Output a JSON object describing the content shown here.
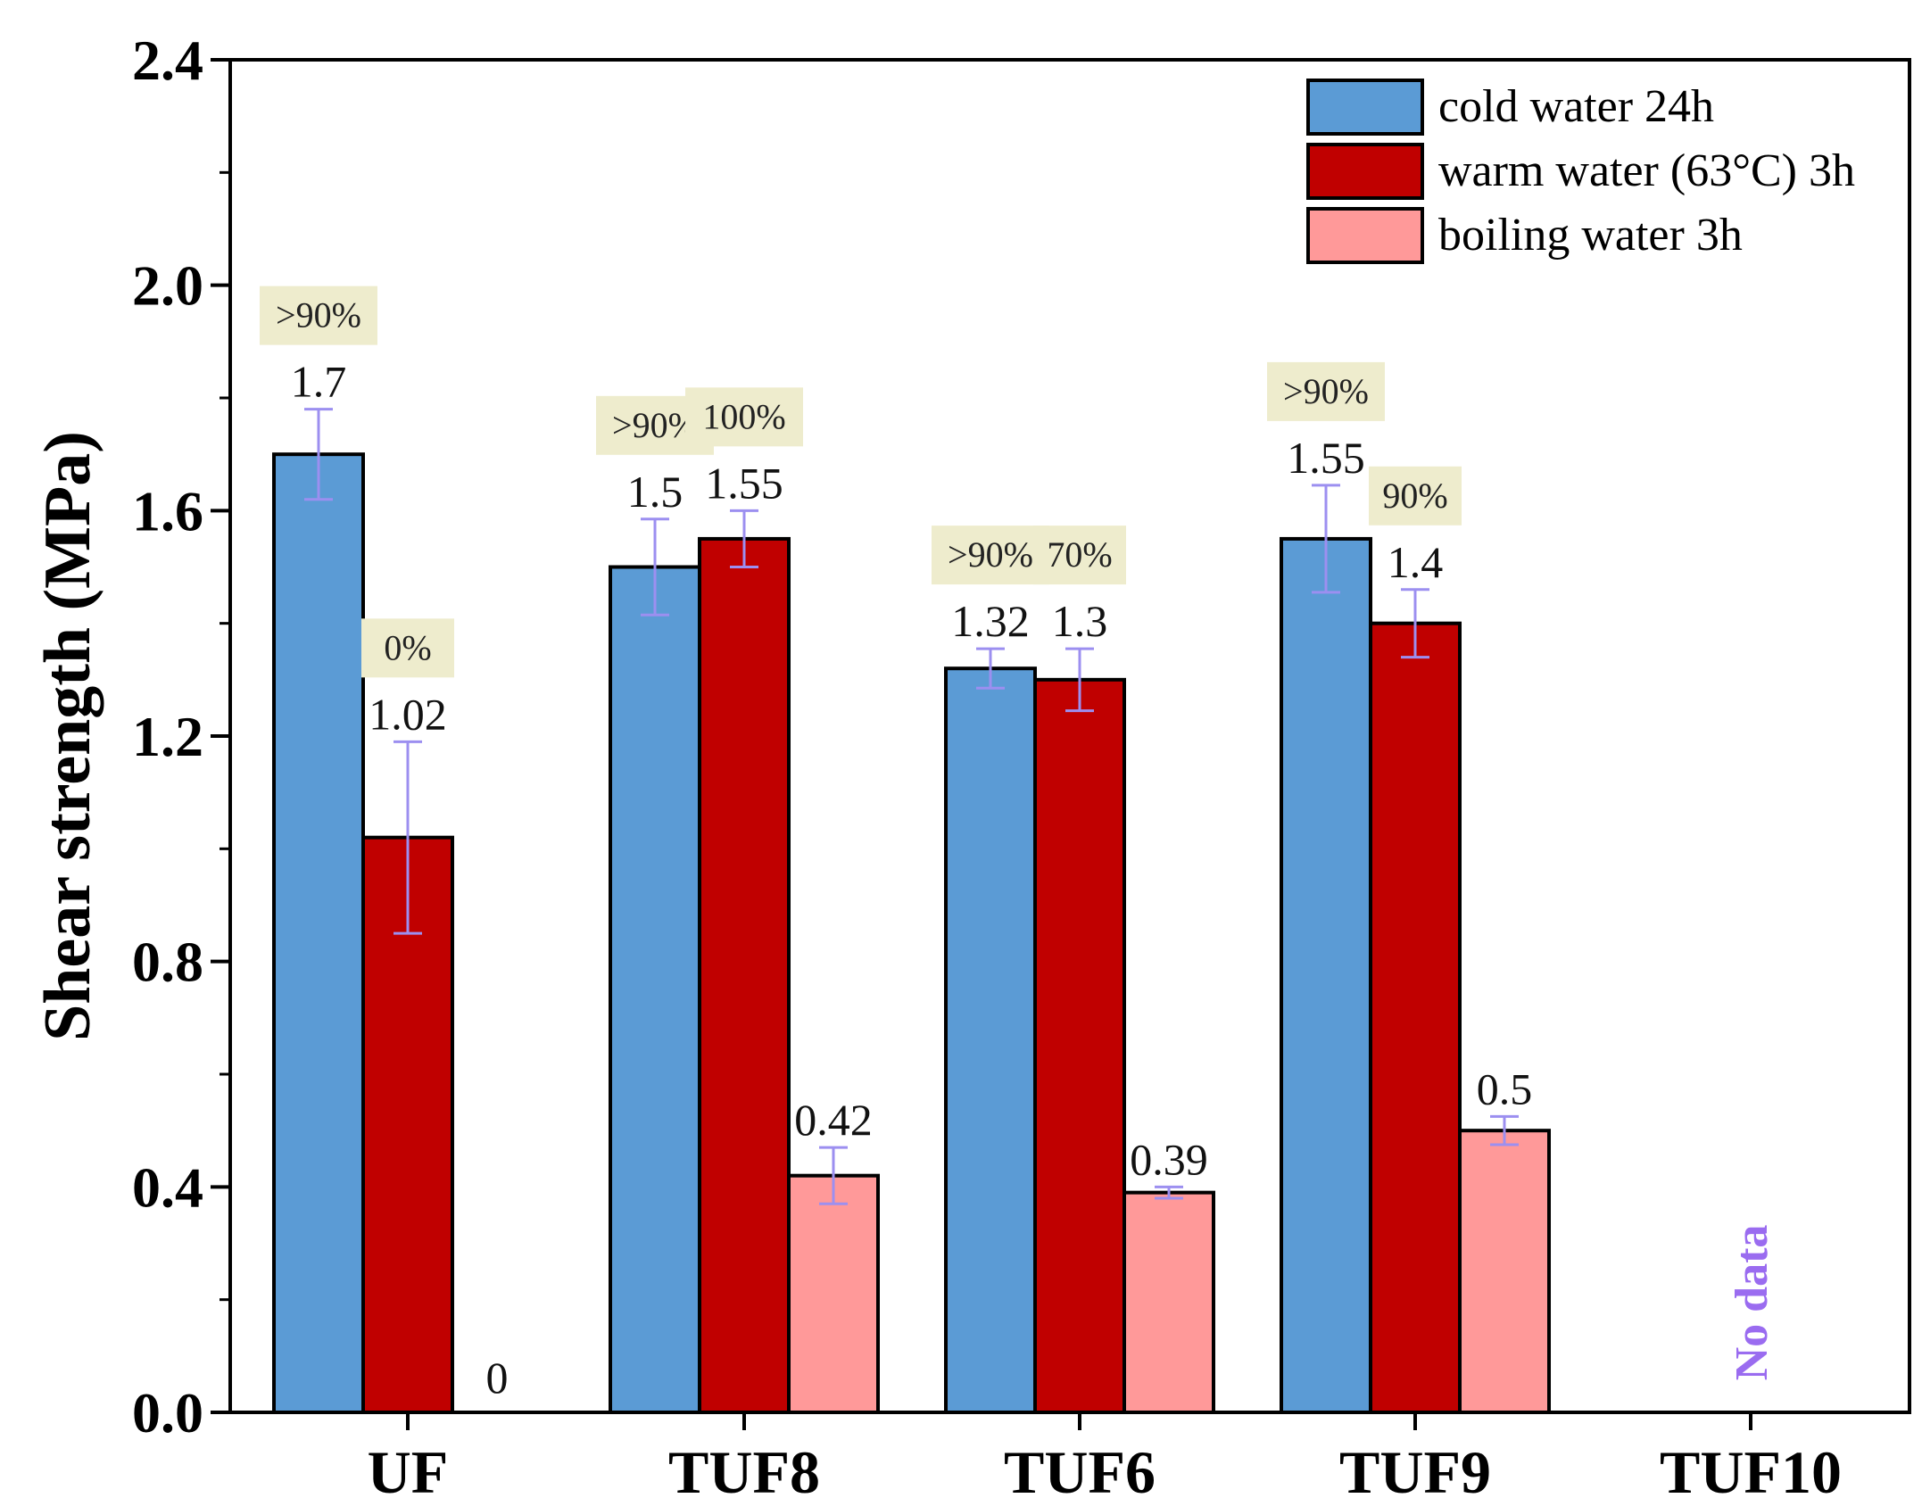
{
  "chart_data": {
    "type": "bar",
    "ylabel": "Shear strength (MPa)",
    "xlabel": "",
    "ylim": [
      0,
      2.4
    ],
    "yticks": [
      "0.0",
      "0.4",
      "0.8",
      "1.2",
      "1.6",
      "2.0",
      "2.4"
    ],
    "categories": [
      "UF",
      "TUF8",
      "TUF6",
      "TUF9",
      "TUF10"
    ],
    "series": [
      {
        "name": "cold water 24h",
        "color": "#5b9bd5",
        "values": [
          1.7,
          1.5,
          1.32,
          1.55,
          null
        ],
        "errors": [
          0.08,
          0.085,
          0.035,
          0.095,
          null
        ],
        "labels": [
          "1.7",
          "1.5",
          "1.32",
          "1.55",
          null
        ],
        "percent": [
          ">90%",
          ">90%",
          ">90%",
          ">90%",
          null
        ]
      },
      {
        "name": "warm water (63°C) 3h",
        "color": "#c00000",
        "values": [
          1.02,
          1.55,
          1.3,
          1.4,
          null
        ],
        "errors": [
          0.17,
          0.05,
          0.055,
          0.06,
          null
        ],
        "labels": [
          "1.02",
          "1.55",
          "1.3",
          "1.4",
          null
        ],
        "percent": [
          "0%",
          "100%",
          "70%",
          "90%",
          null
        ]
      },
      {
        "name": "boiling water 3h",
        "color": "#ff9999",
        "values": [
          0,
          0.42,
          0.39,
          0.5,
          null
        ],
        "errors": [
          0,
          0.05,
          0.01,
          0.025,
          null
        ],
        "labels": [
          "0",
          "0.42",
          "0.39",
          "0.5",
          null
        ],
        "percent": [
          null,
          null,
          null,
          null,
          null
        ]
      }
    ],
    "annotations": [
      {
        "category": "TUF10",
        "text": "No data"
      }
    ],
    "legend": "top-right",
    "grid": false
  }
}
